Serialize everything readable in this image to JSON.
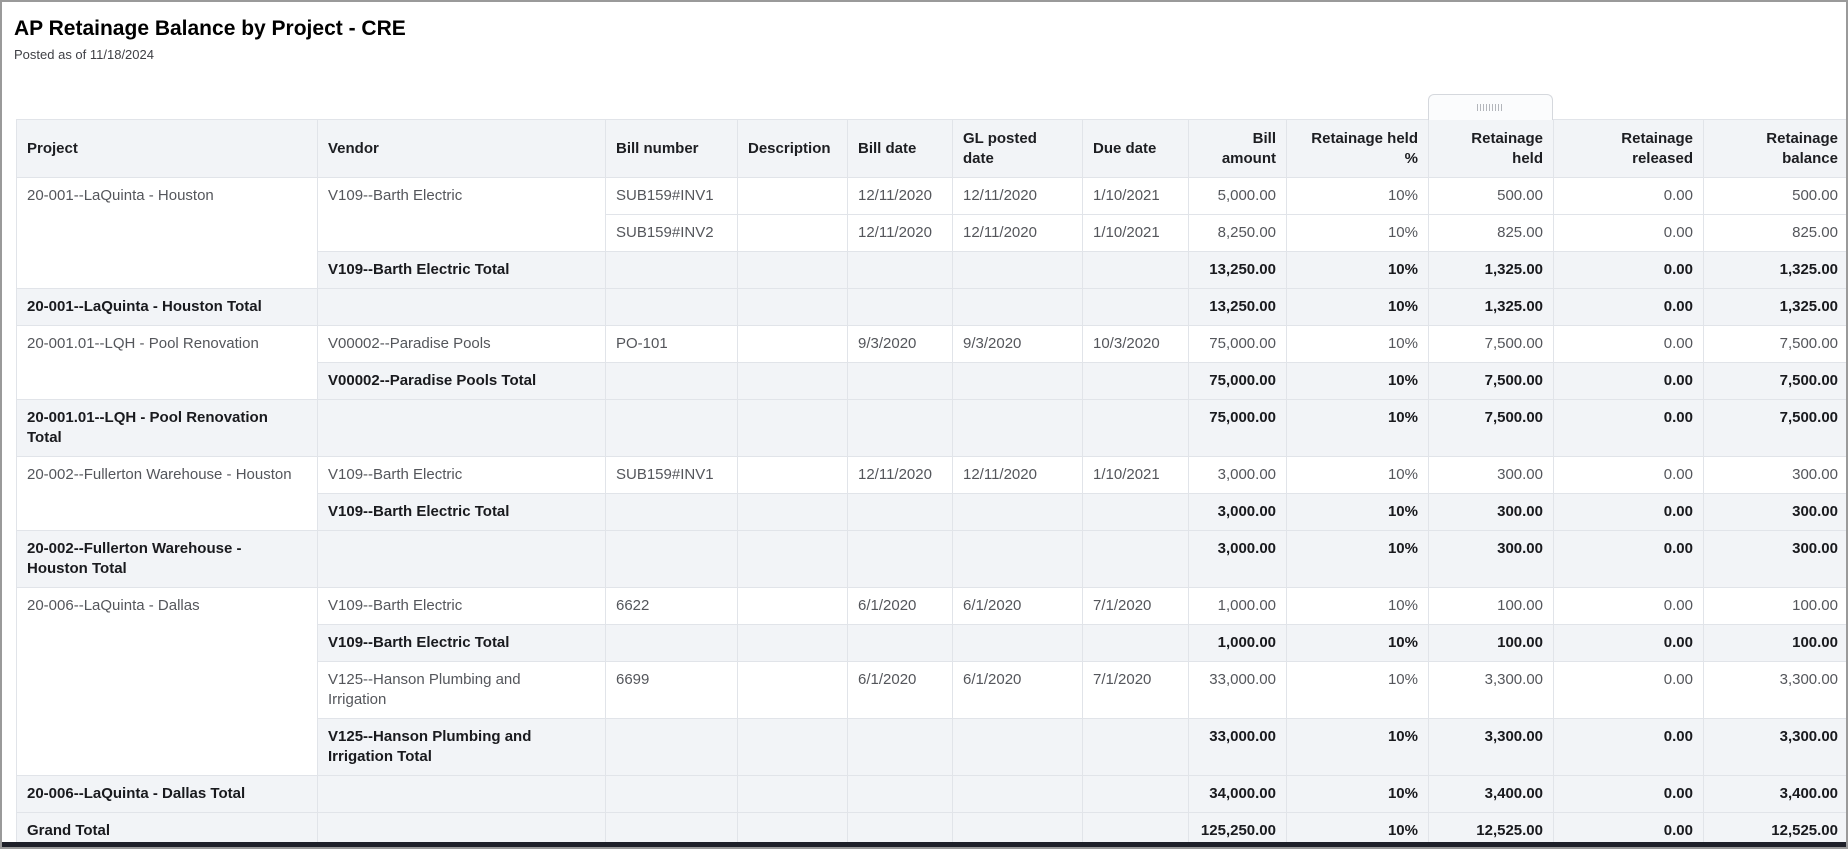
{
  "report": {
    "title": "AP Retainage Balance by Project - CRE",
    "subtitle": "Posted as of 11/18/2024"
  },
  "colors": {
    "header_and_total_row_bg": "#f2f4f7",
    "grid_line": "#e1e4e9",
    "detail_text": "#54565b",
    "total_text": "#191a1e",
    "bottom_bar": "#1e2029"
  },
  "column_drag_handle": {
    "icon": "grip-dots-icon",
    "over_column": "retainage_held"
  },
  "table": {
    "columns": [
      {
        "id": "project",
        "label": "Project"
      },
      {
        "id": "vendor",
        "label": "Vendor"
      },
      {
        "id": "bill_number",
        "label": "Bill number"
      },
      {
        "id": "description",
        "label": "Description"
      },
      {
        "id": "bill_date",
        "label": "Bill date"
      },
      {
        "id": "gl_posted_date",
        "label": "GL posted\ndate"
      },
      {
        "id": "due_date",
        "label": "Due date"
      },
      {
        "id": "bill_amount",
        "label": "Bill\namount"
      },
      {
        "id": "retainage_held_pct",
        "label": "Retainage held\n%"
      },
      {
        "id": "retainage_held",
        "label": "Retainage\nheld"
      },
      {
        "id": "retainage_released",
        "label": "Retainage\nreleased"
      },
      {
        "id": "retainage_balance",
        "label": "Retainage\nbalance"
      }
    ],
    "rows": [
      {
        "kind": "detail",
        "cells": [
          {
            "col": "project",
            "rowspan": 3,
            "text": "20-001--LaQuinta - Houston"
          },
          {
            "col": "vendor",
            "rowspan": 2,
            "text": "V109--Barth Electric"
          },
          {
            "col": "bill_number",
            "text": "SUB159#INV1"
          },
          {
            "col": "description",
            "text": ""
          },
          {
            "col": "bill_date",
            "text": "12/11/2020"
          },
          {
            "col": "gl_posted_date",
            "text": "12/11/2020"
          },
          {
            "col": "due_date",
            "text": "1/10/2021"
          },
          {
            "col": "bill_amount",
            "text": "5,000.00"
          },
          {
            "col": "retainage_held_pct",
            "text": "10%"
          },
          {
            "col": "retainage_held",
            "text": "500.00"
          },
          {
            "col": "retainage_released",
            "text": "0.00"
          },
          {
            "col": "retainage_balance",
            "text": "500.00"
          }
        ]
      },
      {
        "kind": "detail",
        "cells": [
          {
            "col": "bill_number",
            "text": "SUB159#INV2"
          },
          {
            "col": "description",
            "text": ""
          },
          {
            "col": "bill_date",
            "text": "12/11/2020"
          },
          {
            "col": "gl_posted_date",
            "text": "12/11/2020"
          },
          {
            "col": "due_date",
            "text": "1/10/2021"
          },
          {
            "col": "bill_amount",
            "text": "8,250.00"
          },
          {
            "col": "retainage_held_pct",
            "text": "10%"
          },
          {
            "col": "retainage_held",
            "text": "825.00"
          },
          {
            "col": "retainage_released",
            "text": "0.00"
          },
          {
            "col": "retainage_balance",
            "text": "825.00"
          }
        ]
      },
      {
        "kind": "vendor_total",
        "cells": [
          {
            "col": "vendor",
            "text": "V109--Barth Electric Total"
          },
          {
            "col": "bill_number",
            "text": ""
          },
          {
            "col": "description",
            "text": ""
          },
          {
            "col": "bill_date",
            "text": ""
          },
          {
            "col": "gl_posted_date",
            "text": ""
          },
          {
            "col": "due_date",
            "text": ""
          },
          {
            "col": "bill_amount",
            "text": "13,250.00"
          },
          {
            "col": "retainage_held_pct",
            "text": "10%"
          },
          {
            "col": "retainage_held",
            "text": "1,325.00"
          },
          {
            "col": "retainage_released",
            "text": "0.00"
          },
          {
            "col": "retainage_balance",
            "text": "1,325.00"
          }
        ]
      },
      {
        "kind": "project_total",
        "cells": [
          {
            "col": "project",
            "text": "20-001--LaQuinta - Houston Total"
          },
          {
            "col": "vendor",
            "text": ""
          },
          {
            "col": "bill_number",
            "text": ""
          },
          {
            "col": "description",
            "text": ""
          },
          {
            "col": "bill_date",
            "text": ""
          },
          {
            "col": "gl_posted_date",
            "text": ""
          },
          {
            "col": "due_date",
            "text": ""
          },
          {
            "col": "bill_amount",
            "text": "13,250.00"
          },
          {
            "col": "retainage_held_pct",
            "text": "10%"
          },
          {
            "col": "retainage_held",
            "text": "1,325.00"
          },
          {
            "col": "retainage_released",
            "text": "0.00"
          },
          {
            "col": "retainage_balance",
            "text": "1,325.00"
          }
        ]
      },
      {
        "kind": "detail",
        "cells": [
          {
            "col": "project",
            "rowspan": 2,
            "text": "20-001.01--LQH - Pool Renovation"
          },
          {
            "col": "vendor",
            "text": "V00002--Paradise Pools"
          },
          {
            "col": "bill_number",
            "text": "PO-101"
          },
          {
            "col": "description",
            "text": ""
          },
          {
            "col": "bill_date",
            "text": "9/3/2020"
          },
          {
            "col": "gl_posted_date",
            "text": "9/3/2020"
          },
          {
            "col": "due_date",
            "text": "10/3/2020"
          },
          {
            "col": "bill_amount",
            "text": "75,000.00"
          },
          {
            "col": "retainage_held_pct",
            "text": "10%"
          },
          {
            "col": "retainage_held",
            "text": "7,500.00"
          },
          {
            "col": "retainage_released",
            "text": "0.00"
          },
          {
            "col": "retainage_balance",
            "text": "7,500.00"
          }
        ]
      },
      {
        "kind": "vendor_total",
        "cells": [
          {
            "col": "vendor",
            "text": "V00002--Paradise Pools Total"
          },
          {
            "col": "bill_number",
            "text": ""
          },
          {
            "col": "description",
            "text": ""
          },
          {
            "col": "bill_date",
            "text": ""
          },
          {
            "col": "gl_posted_date",
            "text": ""
          },
          {
            "col": "due_date",
            "text": ""
          },
          {
            "col": "bill_amount",
            "text": "75,000.00"
          },
          {
            "col": "retainage_held_pct",
            "text": "10%"
          },
          {
            "col": "retainage_held",
            "text": "7,500.00"
          },
          {
            "col": "retainage_released",
            "text": "0.00"
          },
          {
            "col": "retainage_balance",
            "text": "7,500.00"
          }
        ]
      },
      {
        "kind": "project_total",
        "cells": [
          {
            "col": "project",
            "text": "20-001.01--LQH - Pool Renovation Total"
          },
          {
            "col": "vendor",
            "text": ""
          },
          {
            "col": "bill_number",
            "text": ""
          },
          {
            "col": "description",
            "text": ""
          },
          {
            "col": "bill_date",
            "text": ""
          },
          {
            "col": "gl_posted_date",
            "text": ""
          },
          {
            "col": "due_date",
            "text": ""
          },
          {
            "col": "bill_amount",
            "text": "75,000.00"
          },
          {
            "col": "retainage_held_pct",
            "text": "10%"
          },
          {
            "col": "retainage_held",
            "text": "7,500.00"
          },
          {
            "col": "retainage_released",
            "text": "0.00"
          },
          {
            "col": "retainage_balance",
            "text": "7,500.00"
          }
        ]
      },
      {
        "kind": "detail",
        "cells": [
          {
            "col": "project",
            "rowspan": 2,
            "text": "20-002--Fullerton Warehouse - Houston"
          },
          {
            "col": "vendor",
            "text": "V109--Barth Electric"
          },
          {
            "col": "bill_number",
            "text": "SUB159#INV1"
          },
          {
            "col": "description",
            "text": ""
          },
          {
            "col": "bill_date",
            "text": "12/11/2020"
          },
          {
            "col": "gl_posted_date",
            "text": "12/11/2020"
          },
          {
            "col": "due_date",
            "text": "1/10/2021"
          },
          {
            "col": "bill_amount",
            "text": "3,000.00"
          },
          {
            "col": "retainage_held_pct",
            "text": "10%"
          },
          {
            "col": "retainage_held",
            "text": "300.00"
          },
          {
            "col": "retainage_released",
            "text": "0.00"
          },
          {
            "col": "retainage_balance",
            "text": "300.00"
          }
        ]
      },
      {
        "kind": "vendor_total",
        "cells": [
          {
            "col": "vendor",
            "text": "V109--Barth Electric Total"
          },
          {
            "col": "bill_number",
            "text": ""
          },
          {
            "col": "description",
            "text": ""
          },
          {
            "col": "bill_date",
            "text": ""
          },
          {
            "col": "gl_posted_date",
            "text": ""
          },
          {
            "col": "due_date",
            "text": ""
          },
          {
            "col": "bill_amount",
            "text": "3,000.00"
          },
          {
            "col": "retainage_held_pct",
            "text": "10%"
          },
          {
            "col": "retainage_held",
            "text": "300.00"
          },
          {
            "col": "retainage_released",
            "text": "0.00"
          },
          {
            "col": "retainage_balance",
            "text": "300.00"
          }
        ]
      },
      {
        "kind": "project_total",
        "cells": [
          {
            "col": "project",
            "text": "20-002--Fullerton Warehouse - Houston Total"
          },
          {
            "col": "vendor",
            "text": ""
          },
          {
            "col": "bill_number",
            "text": ""
          },
          {
            "col": "description",
            "text": ""
          },
          {
            "col": "bill_date",
            "text": ""
          },
          {
            "col": "gl_posted_date",
            "text": ""
          },
          {
            "col": "due_date",
            "text": ""
          },
          {
            "col": "bill_amount",
            "text": "3,000.00"
          },
          {
            "col": "retainage_held_pct",
            "text": "10%"
          },
          {
            "col": "retainage_held",
            "text": "300.00"
          },
          {
            "col": "retainage_released",
            "text": "0.00"
          },
          {
            "col": "retainage_balance",
            "text": "300.00"
          }
        ]
      },
      {
        "kind": "detail",
        "cells": [
          {
            "col": "project",
            "rowspan": 4,
            "text": "20-006--LaQuinta - Dallas"
          },
          {
            "col": "vendor",
            "text": "V109--Barth Electric"
          },
          {
            "col": "bill_number",
            "text": "6622"
          },
          {
            "col": "description",
            "text": ""
          },
          {
            "col": "bill_date",
            "text": "6/1/2020"
          },
          {
            "col": "gl_posted_date",
            "text": "6/1/2020"
          },
          {
            "col": "due_date",
            "text": "7/1/2020"
          },
          {
            "col": "bill_amount",
            "text": "1,000.00"
          },
          {
            "col": "retainage_held_pct",
            "text": "10%"
          },
          {
            "col": "retainage_held",
            "text": "100.00"
          },
          {
            "col": "retainage_released",
            "text": "0.00"
          },
          {
            "col": "retainage_balance",
            "text": "100.00"
          }
        ]
      },
      {
        "kind": "vendor_total",
        "cells": [
          {
            "col": "vendor",
            "text": "V109--Barth Electric Total"
          },
          {
            "col": "bill_number",
            "text": ""
          },
          {
            "col": "description",
            "text": ""
          },
          {
            "col": "bill_date",
            "text": ""
          },
          {
            "col": "gl_posted_date",
            "text": ""
          },
          {
            "col": "due_date",
            "text": ""
          },
          {
            "col": "bill_amount",
            "text": "1,000.00"
          },
          {
            "col": "retainage_held_pct",
            "text": "10%"
          },
          {
            "col": "retainage_held",
            "text": "100.00"
          },
          {
            "col": "retainage_released",
            "text": "0.00"
          },
          {
            "col": "retainage_balance",
            "text": "100.00"
          }
        ]
      },
      {
        "kind": "detail",
        "cells": [
          {
            "col": "vendor",
            "text": "V125--Hanson Plumbing and Irrigation"
          },
          {
            "col": "bill_number",
            "text": "6699"
          },
          {
            "col": "description",
            "text": ""
          },
          {
            "col": "bill_date",
            "text": "6/1/2020"
          },
          {
            "col": "gl_posted_date",
            "text": "6/1/2020"
          },
          {
            "col": "due_date",
            "text": "7/1/2020"
          },
          {
            "col": "bill_amount",
            "text": "33,000.00"
          },
          {
            "col": "retainage_held_pct",
            "text": "10%"
          },
          {
            "col": "retainage_held",
            "text": "3,300.00"
          },
          {
            "col": "retainage_released",
            "text": "0.00"
          },
          {
            "col": "retainage_balance",
            "text": "3,300.00"
          }
        ]
      },
      {
        "kind": "vendor_total",
        "cells": [
          {
            "col": "vendor",
            "text": "V125--Hanson Plumbing and Irrigation Total"
          },
          {
            "col": "bill_number",
            "text": ""
          },
          {
            "col": "description",
            "text": ""
          },
          {
            "col": "bill_date",
            "text": ""
          },
          {
            "col": "gl_posted_date",
            "text": ""
          },
          {
            "col": "due_date",
            "text": ""
          },
          {
            "col": "bill_amount",
            "text": "33,000.00"
          },
          {
            "col": "retainage_held_pct",
            "text": "10%"
          },
          {
            "col": "retainage_held",
            "text": "3,300.00"
          },
          {
            "col": "retainage_released",
            "text": "0.00"
          },
          {
            "col": "retainage_balance",
            "text": "3,300.00"
          }
        ]
      },
      {
        "kind": "project_total",
        "cells": [
          {
            "col": "project",
            "text": "20-006--LaQuinta - Dallas Total"
          },
          {
            "col": "vendor",
            "text": ""
          },
          {
            "col": "bill_number",
            "text": ""
          },
          {
            "col": "description",
            "text": ""
          },
          {
            "col": "bill_date",
            "text": ""
          },
          {
            "col": "gl_posted_date",
            "text": ""
          },
          {
            "col": "due_date",
            "text": ""
          },
          {
            "col": "bill_amount",
            "text": "34,000.00"
          },
          {
            "col": "retainage_held_pct",
            "text": "10%"
          },
          {
            "col": "retainage_held",
            "text": "3,400.00"
          },
          {
            "col": "retainage_released",
            "text": "0.00"
          },
          {
            "col": "retainage_balance",
            "text": "3,400.00"
          }
        ]
      },
      {
        "kind": "grand_total",
        "cells": [
          {
            "col": "project",
            "text": "Grand Total"
          },
          {
            "col": "vendor",
            "text": ""
          },
          {
            "col": "bill_number",
            "text": ""
          },
          {
            "col": "description",
            "text": ""
          },
          {
            "col": "bill_date",
            "text": ""
          },
          {
            "col": "gl_posted_date",
            "text": ""
          },
          {
            "col": "due_date",
            "text": ""
          },
          {
            "col": "bill_amount",
            "text": "125,250.00"
          },
          {
            "col": "retainage_held_pct",
            "text": "10%"
          },
          {
            "col": "retainage_held",
            "text": "12,525.00"
          },
          {
            "col": "retainage_released",
            "text": "0.00"
          },
          {
            "col": "retainage_balance",
            "text": "12,525.00"
          }
        ]
      }
    ]
  }
}
